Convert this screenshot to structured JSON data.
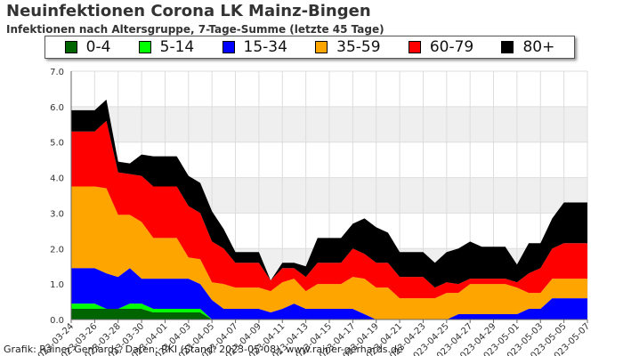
{
  "title": "Neuinfektionen Corona LK Mainz-Bingen",
  "subtitle": "Infektionen nach Altersgruppe, 7-Tage-Summe (letzte 45 Tage)",
  "credit": "Grafik: Rainer Gerhards, Daten: RKI (Stand: 2023-05-08), www.rainer-gerhards.de",
  "chart_data": {
    "type": "area",
    "stacked": true,
    "title": "Neuinfektionen Corona LK Mainz-Bingen",
    "subtitle": "Infektionen nach Altersgruppe, 7-Tage-Summe (letzte 45 Tage)",
    "xlabel": "",
    "ylabel": "",
    "ylim": [
      0,
      7
    ],
    "yticks": [
      "0.0",
      "1.0",
      "2.0",
      "3.0",
      "4.0",
      "5.0",
      "6.0",
      "7.0"
    ],
    "grid": true,
    "legend_position": "top",
    "x": [
      "2023-03-24",
      "2023-03-25",
      "2023-03-26",
      "2023-03-27",
      "2023-03-28",
      "2023-03-29",
      "2023-03-30",
      "2023-03-31",
      "2023-04-01",
      "2023-04-02",
      "2023-04-03",
      "2023-04-04",
      "2023-04-05",
      "2023-04-06",
      "2023-04-07",
      "2023-04-08",
      "2023-04-09",
      "2023-04-10",
      "2023-04-11",
      "2023-04-12",
      "2023-04-13",
      "2023-04-14",
      "2023-04-15",
      "2023-04-16",
      "2023-04-17",
      "2023-04-18",
      "2023-04-19",
      "2023-04-20",
      "2023-04-21",
      "2023-04-22",
      "2023-04-23",
      "2023-04-24",
      "2023-04-25",
      "2023-04-26",
      "2023-04-27",
      "2023-04-28",
      "2023-04-29",
      "2023-04-30",
      "2023-05-01",
      "2023-05-02",
      "2023-05-03",
      "2023-05-04",
      "2023-05-05",
      "2023-05-06",
      "2023-05-07"
    ],
    "tick_labels": [
      "2023-03-24",
      "2023-03-26",
      "2023-03-28",
      "2023-03-30",
      "2023-04-01",
      "2023-04-03",
      "2023-04-05",
      "2023-04-07",
      "2023-04-09",
      "2023-04-11",
      "2023-04-13",
      "2023-04-15",
      "2023-04-17",
      "2023-04-19",
      "2023-04-21",
      "2023-04-23",
      "2023-04-25",
      "2023-04-27",
      "2023-04-29",
      "2023-05-01",
      "2023-05-03",
      "2023-05-05",
      "2023-05-07"
    ],
    "series": [
      {
        "name": "0-4",
        "color": "#006400",
        "values": [
          0.3,
          0.3,
          0.3,
          0.3,
          0.3,
          0.3,
          0.3,
          0.2,
          0.2,
          0.2,
          0.2,
          0.2,
          0.0,
          0.0,
          0.0,
          0.0,
          0.0,
          0.0,
          0.0,
          0.0,
          0.0,
          0.0,
          0.0,
          0.0,
          0.0,
          0.0,
          0.0,
          0.0,
          0.0,
          0.0,
          0.0,
          0.0,
          0.0,
          0.0,
          0.0,
          0.0,
          0.0,
          0.0,
          0.0,
          0.0,
          0.0,
          0.0,
          0.0,
          0.0,
          0.0
        ]
      },
      {
        "name": "5-14",
        "color": "#00ff00",
        "values": [
          0.15,
          0.15,
          0.15,
          0.0,
          0.0,
          0.15,
          0.15,
          0.1,
          0.1,
          0.1,
          0.1,
          0.1,
          0.0,
          0.0,
          0.0,
          0.0,
          0.0,
          0.0,
          0.0,
          0.0,
          0.0,
          0.0,
          0.0,
          0.0,
          0.0,
          0.0,
          0.0,
          0.0,
          0.0,
          0.0,
          0.0,
          0.0,
          0.0,
          0.0,
          0.0,
          0.0,
          0.0,
          0.0,
          0.0,
          0.0,
          0.0,
          0.0,
          0.0,
          0.0,
          0.0
        ]
      },
      {
        "name": "15-34",
        "color": "#0000ff",
        "values": [
          1.0,
          1.0,
          1.0,
          1.0,
          0.9,
          1.0,
          0.7,
          0.85,
          0.85,
          0.85,
          0.85,
          0.7,
          0.55,
          0.3,
          0.3,
          0.3,
          0.3,
          0.2,
          0.3,
          0.45,
          0.3,
          0.3,
          0.3,
          0.3,
          0.3,
          0.15,
          0.0,
          0.0,
          0.0,
          0.0,
          0.0,
          0.0,
          0.0,
          0.15,
          0.15,
          0.15,
          0.15,
          0.15,
          0.15,
          0.3,
          0.3,
          0.6,
          0.6,
          0.6,
          0.6
        ]
      },
      {
        "name": "35-59",
        "color": "#ffa500",
        "values": [
          2.3,
          2.3,
          2.3,
          2.4,
          1.75,
          1.5,
          1.6,
          1.15,
          1.15,
          1.15,
          0.6,
          0.7,
          0.5,
          0.7,
          0.6,
          0.6,
          0.6,
          0.6,
          0.75,
          0.7,
          0.5,
          0.7,
          0.7,
          0.7,
          0.9,
          1.0,
          0.9,
          0.9,
          0.6,
          0.6,
          0.6,
          0.6,
          0.75,
          0.6,
          0.85,
          0.85,
          0.85,
          0.85,
          0.75,
          0.45,
          0.45,
          0.55,
          0.55,
          0.55,
          0.55
        ]
      },
      {
        "name": "60-79",
        "color": "#ff0000",
        "values": [
          1.55,
          1.55,
          1.55,
          1.9,
          1.2,
          1.15,
          1.3,
          1.45,
          1.45,
          1.45,
          1.45,
          1.3,
          1.15,
          1.0,
          0.7,
          0.7,
          0.7,
          0.3,
          0.4,
          0.3,
          0.4,
          0.6,
          0.6,
          0.6,
          0.8,
          0.7,
          0.7,
          0.7,
          0.6,
          0.6,
          0.6,
          0.3,
          0.3,
          0.25,
          0.15,
          0.15,
          0.15,
          0.15,
          0.15,
          0.55,
          0.7,
          0.85,
          1.0,
          1.0,
          1.0
        ]
      },
      {
        "name": "80+",
        "color": "#000000",
        "values": [
          0.6,
          0.6,
          0.6,
          0.6,
          0.3,
          0.3,
          0.6,
          0.85,
          0.85,
          0.85,
          0.85,
          0.85,
          0.85,
          0.55,
          0.3,
          0.3,
          0.3,
          0.0,
          0.15,
          0.15,
          0.3,
          0.7,
          0.7,
          0.7,
          0.7,
          1.0,
          1.0,
          0.85,
          0.7,
          0.7,
          0.7,
          0.7,
          0.85,
          1.0,
          1.05,
          0.9,
          0.9,
          0.9,
          0.5,
          0.85,
          0.7,
          0.85,
          1.15,
          1.15,
          1.15
        ]
      }
    ]
  }
}
